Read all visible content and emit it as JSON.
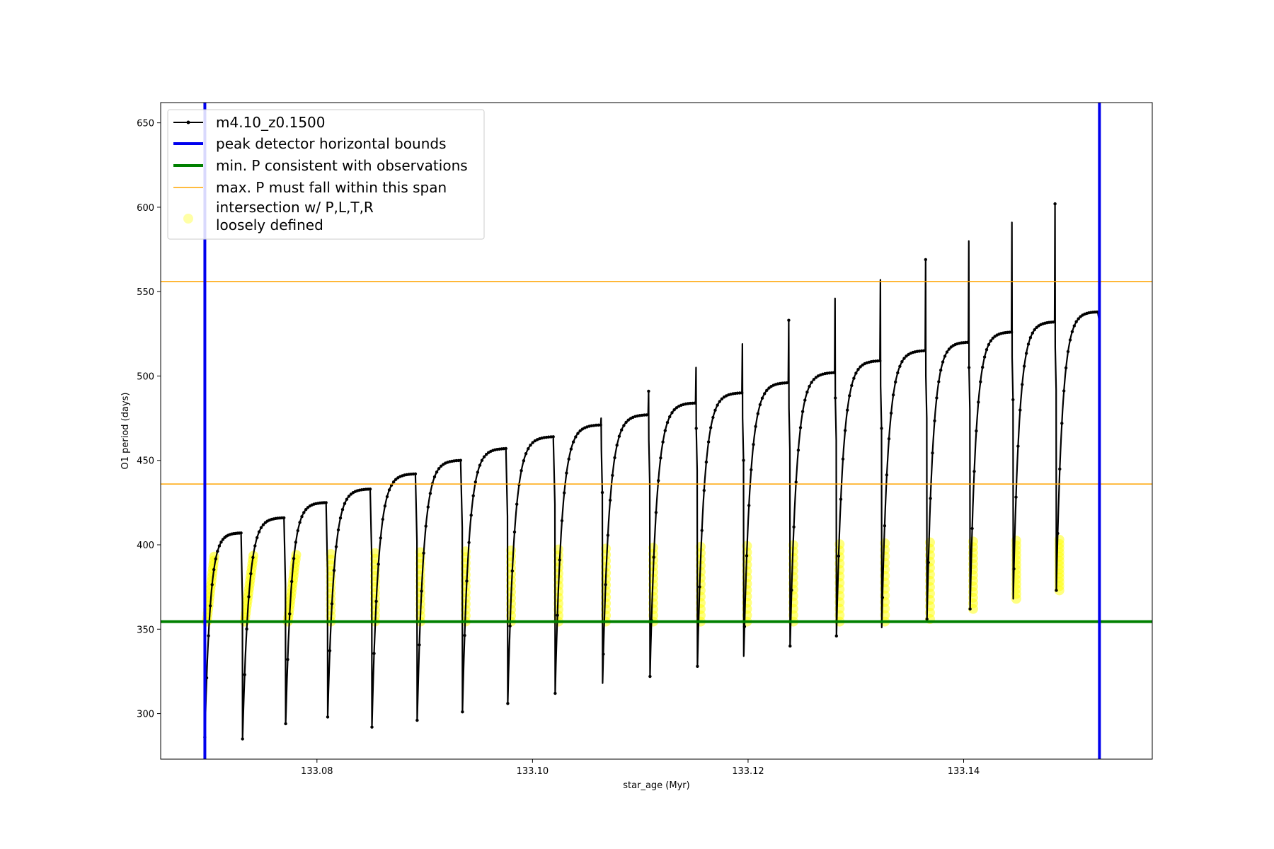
{
  "chart_data": {
    "type": "line",
    "title": "",
    "xlabel": "star_age (Myr)",
    "ylabel": "O1 period (days)",
    "xlim": [
      133.0655,
      133.1575
    ],
    "ylim": [
      273,
      662
    ],
    "x_ticks": [
      {
        "value": 133.08,
        "label": "133.08"
      },
      {
        "value": 133.1,
        "label": "133.10"
      },
      {
        "value": 133.12,
        "label": "133.12"
      },
      {
        "value": 133.14,
        "label": "133.14"
      }
    ],
    "y_ticks": [
      {
        "value": 300,
        "label": "300"
      },
      {
        "value": 350,
        "label": "350"
      },
      {
        "value": 400,
        "label": "400"
      },
      {
        "value": 450,
        "label": "450"
      },
      {
        "value": 500,
        "label": "500"
      },
      {
        "value": 550,
        "label": "550"
      },
      {
        "value": 600,
        "label": "600"
      },
      {
        "value": 650,
        "label": "650"
      }
    ],
    "grid": false,
    "legend_position": "top-left",
    "legend": [
      {
        "label": "m4.10_z0.1500",
        "style": "line-marker",
        "color": "#000000"
      },
      {
        "label": "peak detector horizontal bounds",
        "style": "thick-line",
        "color": "#0000ee"
      },
      {
        "label": "min. P consistent with observations",
        "style": "thick-line",
        "color": "#008000"
      },
      {
        "label": "max. P must fall within this span",
        "style": "thin-line",
        "color": "#ffa500"
      },
      {
        "label": "intersection w/ P,L,T,R",
        "label2": "loosely defined",
        "style": "circle",
        "color": "#ffff00"
      }
    ],
    "vertical_lines": [
      {
        "x": 133.0696,
        "color": "#0000ee"
      },
      {
        "x": 133.1526,
        "color": "#0000ee"
      }
    ],
    "horizontal_lines": [
      {
        "y": 354.5,
        "color": "#008000"
      },
      {
        "y": 436,
        "color": "#ffa500"
      },
      {
        "y": 556,
        "color": "#ffa500"
      }
    ],
    "pulse_cycles": [
      {
        "start": 133.0696,
        "end": 133.0731,
        "min": 286,
        "peak": 407,
        "spike": 407
      },
      {
        "start": 133.0731,
        "end": 133.0771,
        "min": 285,
        "peak": 416,
        "spike": 416
      },
      {
        "start": 133.0771,
        "end": 133.081,
        "min": 294,
        "peak": 425,
        "spike": 425
      },
      {
        "start": 133.081,
        "end": 133.0851,
        "min": 298,
        "peak": 433,
        "spike": 433
      },
      {
        "start": 133.0851,
        "end": 133.0893,
        "min": 292,
        "peak": 442,
        "spike": 442
      },
      {
        "start": 133.0893,
        "end": 133.0935,
        "min": 296,
        "peak": 450,
        "spike": 450
      },
      {
        "start": 133.0935,
        "end": 133.0977,
        "min": 301,
        "peak": 457,
        "spike": 457
      },
      {
        "start": 133.0977,
        "end": 133.1021,
        "min": 306,
        "peak": 464,
        "spike": 464
      },
      {
        "start": 133.1021,
        "end": 133.1065,
        "min": 312,
        "peak": 471,
        "spike": 475
      },
      {
        "start": 133.1065,
        "end": 133.1109,
        "min": 318,
        "peak": 477,
        "spike": 491
      },
      {
        "start": 133.1109,
        "end": 133.1153,
        "min": 322,
        "peak": 484,
        "spike": 505
      },
      {
        "start": 133.1153,
        "end": 133.1196,
        "min": 328,
        "peak": 490,
        "spike": 519
      },
      {
        "start": 133.1196,
        "end": 133.1239,
        "min": 334,
        "peak": 496,
        "spike": 533
      },
      {
        "start": 133.1239,
        "end": 133.1282,
        "min": 340,
        "peak": 502,
        "spike": 546
      },
      {
        "start": 133.1282,
        "end": 133.1324,
        "min": 346,
        "peak": 509,
        "spike": 557
      },
      {
        "start": 133.1324,
        "end": 133.1366,
        "min": 351,
        "peak": 515,
        "spike": 569
      },
      {
        "start": 133.1366,
        "end": 133.1406,
        "min": 356,
        "peak": 520,
        "spike": 580
      },
      {
        "start": 133.1406,
        "end": 133.1446,
        "min": 362,
        "peak": 526,
        "spike": 591
      },
      {
        "start": 133.1446,
        "end": 133.1486,
        "min": 368,
        "peak": 532,
        "spike": 602
      },
      {
        "start": 133.1486,
        "end": 133.1526,
        "min": 373,
        "peak": 538,
        "spike": 538
      }
    ],
    "intersection_band": {
      "lower": 354.5,
      "upper_start": 393,
      "upper_end": 403
    }
  }
}
